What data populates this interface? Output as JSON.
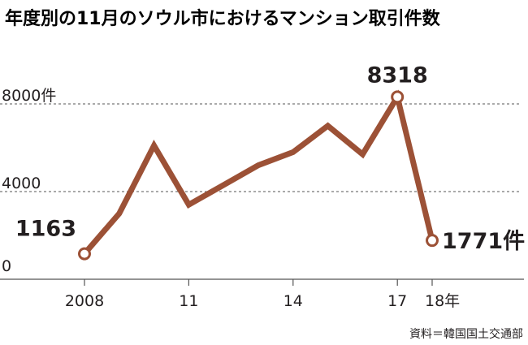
{
  "title": "年度別の11月のソウル市におけるマンション取引件数",
  "source": "資料＝韓国国土交通部",
  "chart_data": {
    "type": "line",
    "title": "年度別の11月のソウル市におけるマンション取引件数",
    "x": [
      2008,
      2009,
      2010,
      2011,
      2012,
      2013,
      2014,
      2015,
      2016,
      2017,
      2018
    ],
    "values": [
      1163,
      3000,
      6100,
      3400,
      4300,
      5200,
      5800,
      7000,
      5700,
      8318,
      1771
    ],
    "xticks": [
      {
        "x": 2008,
        "label": "2008"
      },
      {
        "x": 2011,
        "label": "11"
      },
      {
        "x": 2014,
        "label": "14"
      },
      {
        "x": 2017,
        "label": "17"
      },
      {
        "x": 2018,
        "label": "18年"
      }
    ],
    "yticks": [
      {
        "y": 0,
        "label": "0"
      },
      {
        "y": 4000,
        "label": "4000"
      },
      {
        "y": 8000,
        "label": "8000件"
      }
    ],
    "annotations": [
      {
        "x": 2008,
        "label": "1163"
      },
      {
        "x": 2017,
        "label": "8318"
      },
      {
        "x": 2018,
        "label": "1771件"
      }
    ],
    "ylim": [
      0,
      8000
    ],
    "grid": "horizontal dashed",
    "line_color": "#9c5136"
  }
}
